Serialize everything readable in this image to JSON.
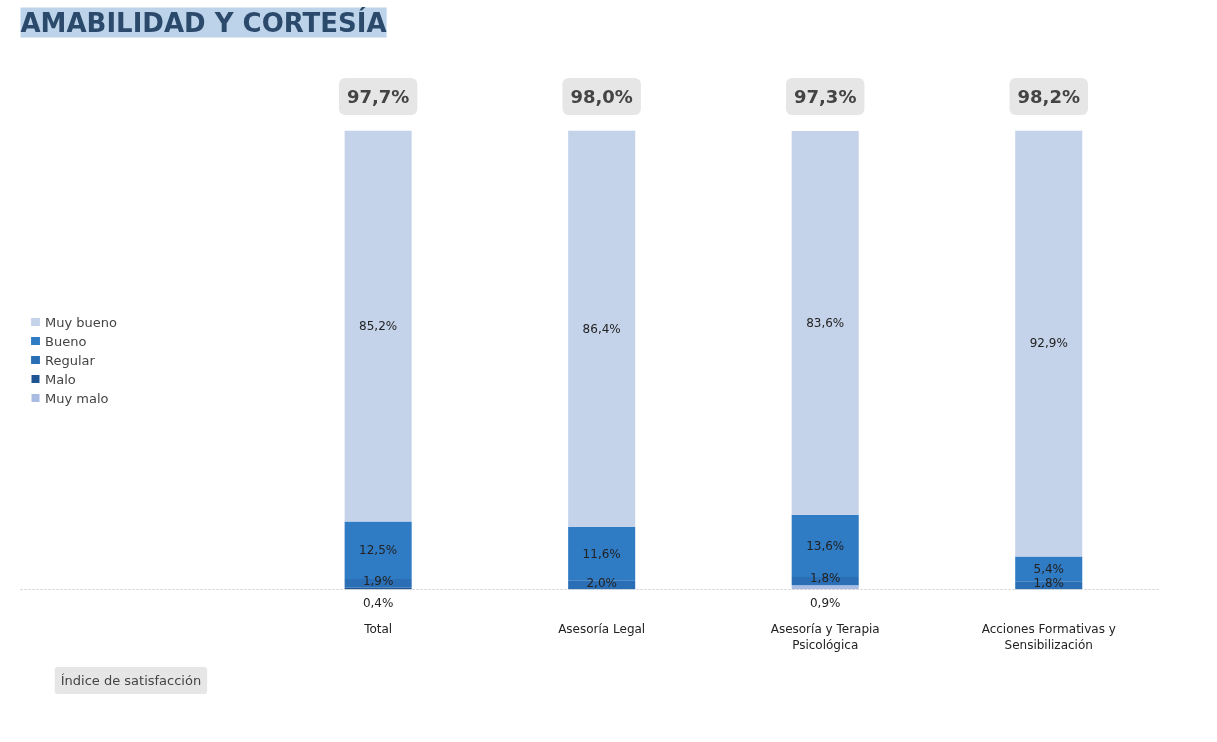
{
  "chart_data": {
    "type": "bar",
    "stacked": true,
    "title": "AMABILIDAD Y CORTESÍA",
    "categories": [
      "Total",
      "Asesoría Legal",
      "Asesoría y Terapia Psicológica",
      "Acciones Formativas y Sensibilización"
    ],
    "series": [
      {
        "name": "Muy malo",
        "color": "#a9bde2",
        "values": [
          null,
          null,
          0.9,
          null
        ],
        "value_labels": [
          null,
          null,
          "0,9%",
          null
        ]
      },
      {
        "name": "Malo",
        "color": "#1f5593",
        "values": [
          0.4,
          null,
          null,
          null
        ],
        "value_labels": [
          "0,4%",
          null,
          null,
          null
        ]
      },
      {
        "name": "Regular",
        "color": "#2a6fb5",
        "values": [
          1.9,
          2.0,
          1.8,
          1.8
        ],
        "value_labels": [
          "1,9%",
          "2,0%",
          "1,8%",
          "1,8%"
        ]
      },
      {
        "name": "Bueno",
        "color": "#2f7bc4",
        "values": [
          12.5,
          11.6,
          13.6,
          5.4
        ],
        "value_labels": [
          "12,5%",
          "11,6%",
          "13,6%",
          "5,4%"
        ]
      },
      {
        "name": "Muy bueno",
        "color": "#c5d3ea",
        "values": [
          85.2,
          86.4,
          83.6,
          92.9
        ],
        "value_labels": [
          "85,2%",
          "86,4%",
          "83,6%",
          "92,9%"
        ]
      }
    ],
    "ylim": [
      0,
      100
    ],
    "tick_labels": "x",
    "grid": false,
    "legend": "left",
    "annotations": [
      "97,7%",
      "98,0%",
      "97,3%",
      "98,2%",
      "Índice de satisfacción"
    ]
  }
}
